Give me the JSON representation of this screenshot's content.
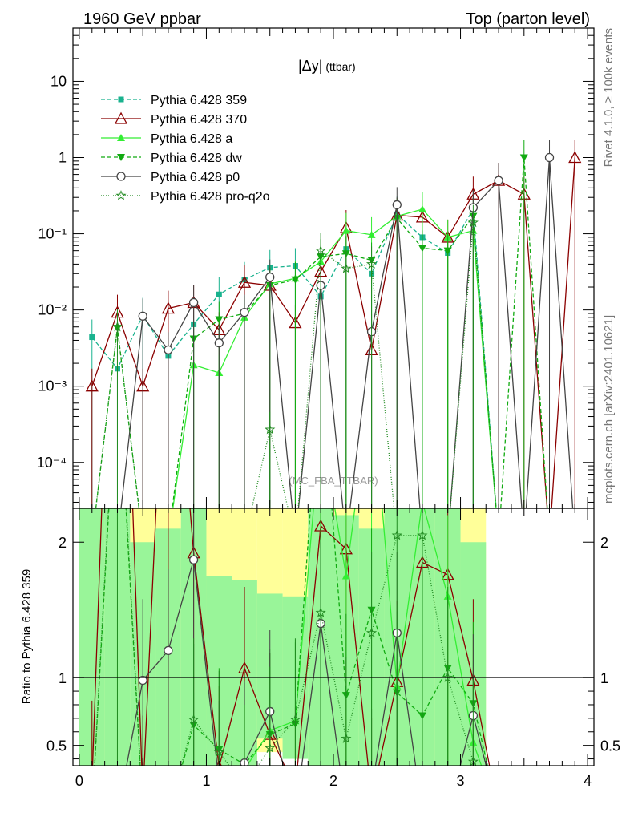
{
  "header": {
    "left": "1960 GeV ppbar",
    "right": "Top (parton level)"
  },
  "side": {
    "rivet": "Rivet 4.1.0, ≥ 100k events",
    "mcplots": "mcplots.cern.ch [arXiv:2401.10621]"
  },
  "main_title": {
    "main": "|Δy|",
    "sub": "(ttbar)"
  },
  "watermark": "(MC_FBA_TTBAR)",
  "ratio_ylabel": "Ratio to Pythia 6.428 359",
  "chart_data": {
    "type": "line",
    "x": [
      0.1,
      0.3,
      0.5,
      0.7,
      0.9,
      1.1,
      1.3,
      1.5,
      1.7,
      1.9,
      2.1,
      2.3,
      2.5,
      2.7,
      2.9,
      3.1,
      3.3,
      3.5,
      3.7,
      3.9
    ],
    "xlim": [
      -0.05,
      4.05
    ],
    "main_ylim": [
      2.5e-05,
      50
    ],
    "main_ylog": true,
    "ratio_ylim": [
      0.35,
      2.25
    ],
    "ratio_yticks": [
      0.5,
      1,
      2
    ],
    "xticks": [
      0,
      1,
      2,
      3,
      4
    ],
    "main_yticks": [
      "10⁻⁴",
      "10⁻³",
      "10⁻²",
      "10⁻¹",
      "1",
      "10"
    ],
    "ratio_yticklabels": [
      "0.5",
      "1",
      "2"
    ],
    "series": [
      {
        "name": "Pythia 6.428 359",
        "color": "#19b28e",
        "dash": "5,3",
        "marker": "square",
        "values": [
          0.0044,
          0.0017,
          0.0085,
          0.0025,
          0.0065,
          0.016,
          0.025,
          0.036,
          0.038,
          0.015,
          0.063,
          0.03,
          0.18,
          0.09,
          0.056,
          0.21,
          null,
          null,
          null,
          null
        ]
      },
      {
        "name": "Pythia 6.428 370",
        "color": "#8b0000",
        "dash": "",
        "marker": "triangle-open",
        "values": [
          0.001,
          0.0093,
          0.001,
          0.0105,
          0.0125,
          0.0055,
          0.023,
          0.021,
          0.0068,
          0.032,
          0.12,
          0.003,
          0.175,
          0.165,
          0.09,
          0.33,
          0.5,
          0.33,
          null,
          1.0
        ]
      },
      {
        "name": "Pythia 6.428 a",
        "color": "#33ee33",
        "dash": "",
        "marker": "triangle",
        "values": [
          null,
          null,
          null,
          null,
          0.0019,
          0.0015,
          0.008,
          0.022,
          0.026,
          0.043,
          0.11,
          0.097,
          0.17,
          0.21,
          0.09,
          0.11,
          null,
          null,
          null,
          null
        ]
      },
      {
        "name": "Pythia 6.428 dw",
        "color": "#11aa11",
        "dash": "5,3",
        "marker": "triangle-down",
        "values": [
          null,
          0.0058,
          null,
          null,
          0.0042,
          0.0075,
          0.009,
          0.021,
          0.025,
          0.05,
          0.055,
          0.045,
          0.16,
          0.065,
          0.06,
          0.17,
          null,
          1.0,
          null,
          null
        ]
      },
      {
        "name": "Pythia 6.428 p0",
        "color": "#444444",
        "dash": "",
        "marker": "circle-open",
        "values": [
          null,
          null,
          0.0083,
          0.003,
          0.0125,
          0.0037,
          0.0093,
          0.027,
          null,
          0.021,
          null,
          0.0052,
          0.24,
          null,
          null,
          0.22,
          0.5,
          null,
          1.0,
          null
        ]
      },
      {
        "name": "Pythia 6.428 pro-q2o",
        "color": "#228b22",
        "dash": "1,2",
        "marker": "star",
        "values": [
          null,
          0.006,
          null,
          null,
          null,
          null,
          null,
          0.00027,
          null,
          0.06,
          0.035,
          0.04,
          null,
          null,
          null,
          0.14,
          null,
          null,
          null,
          null
        ]
      }
    ],
    "ratio_series": [
      {
        "name": "Pythia 6.428 370",
        "values": [
          0.23,
          5.5,
          0.12,
          4.2,
          1.92,
          0.34,
          1.07,
          0.58,
          0.18,
          2.12,
          1.95,
          0.1,
          0.97,
          1.85,
          1.76,
          0.98,
          null,
          null,
          null,
          null
        ]
      },
      {
        "name": "Pythia 6.428 a",
        "values": [
          null,
          null,
          null,
          null,
          0.29,
          0.09,
          0.32,
          0.61,
          0.68,
          2.87,
          1.75,
          3.2,
          0.94,
          2.3,
          1.6,
          0.52,
          null,
          null,
          null,
          null
        ]
      },
      {
        "name": "Pythia 6.428 dw",
        "values": [
          null,
          3.4,
          null,
          null,
          0.65,
          0.47,
          0.36,
          0.58,
          0.66,
          3.33,
          0.87,
          1.5,
          0.89,
          0.72,
          1.07,
          0.81,
          null,
          null,
          null,
          null
        ]
      },
      {
        "name": "Pythia 6.428 p0",
        "values": [
          null,
          null,
          0.98,
          1.2,
          1.87,
          0.23,
          0.37,
          0.75,
          null,
          1.4,
          null,
          0.17,
          1.33,
          null,
          null,
          0.72,
          null,
          null,
          null,
          null
        ]
      },
      {
        "name": "Pythia 6.428 pro-q2o",
        "values": [
          null,
          3.5,
          null,
          null,
          0.69,
          0.45,
          0.2,
          0.48,
          0.69,
          1.48,
          0.55,
          1.33,
          2.05,
          2.05,
          1.0,
          0.38,
          null,
          null,
          null,
          null
        ]
      }
    ],
    "ratio_bands": {
      "yellow_low": [
        0.1,
        0.1,
        0.1,
        0.1,
        0.1,
        0.1,
        0.1,
        0.45,
        0.42,
        0.1,
        0.1,
        0.1,
        0.1,
        0.1,
        0.1,
        0.1
      ],
      "yellow_high": [
        2.5,
        2.5,
        2.5,
        2.5,
        2.5,
        2.5,
        2.5,
        2.3,
        2.25,
        2.5,
        2.5,
        2.5,
        2.5,
        2.5,
        2.5,
        2.5
      ],
      "green_low": [
        0.1,
        0.1,
        0.1,
        0.1,
        0.1,
        0.1,
        0.1,
        0.55,
        0.4,
        0.1,
        0.1,
        0.1,
        0.1,
        0.1,
        0.1,
        0.1
      ],
      "green_high": [
        2.5,
        2.5,
        2.0,
        2.1,
        2.5,
        1.75,
        1.72,
        1.62,
        1.6,
        2.5,
        2.2,
        2.1,
        2.5,
        2.5,
        2.5,
        2.0
      ]
    }
  }
}
